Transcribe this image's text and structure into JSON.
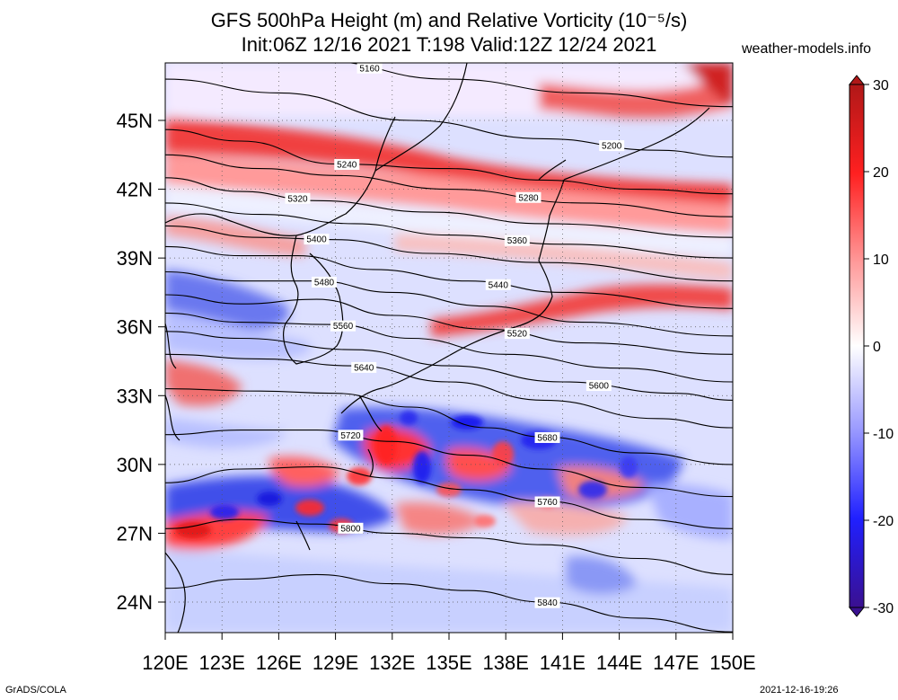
{
  "title_line1": "GFS 500hPa Height (m) and Relative Vorticity (10⁻⁵/s)",
  "title_line2": "Init:06Z 12/16 2021 T:198 Valid:12Z 12/24 2021",
  "credit": "weather-models.info",
  "footer_left": "GrADS/COLA",
  "footer_right": "2021-12-16-19:26",
  "lat_ticks": [
    "45N",
    "42N",
    "39N",
    "36N",
    "33N",
    "30N",
    "27N",
    "24N"
  ],
  "lon_ticks": [
    "120E",
    "123E",
    "126E",
    "129E",
    "132E",
    "135E",
    "138E",
    "141E",
    "144E",
    "147E",
    "150E"
  ],
  "colorbar": {
    "ticks": [
      "30",
      "20",
      "10",
      "0",
      "-10",
      "-20",
      "-30"
    ],
    "range": [
      -30,
      30
    ],
    "colors": {
      "max": "#b01818",
      "pos": "#ff2020",
      "zero": "#ffffff",
      "neg": "#2020ff",
      "min": "#3a1090"
    }
  },
  "contours": [
    {
      "label": "5160",
      "geo": [
        [
          120,
          48.2
        ],
        [
          128,
          47.6
        ],
        [
          135,
          46.8
        ],
        [
          142,
          46.2
        ],
        [
          150,
          45.6
        ]
      ]
    },
    {
      "label": "5200",
      "geo": [
        [
          120,
          46.8
        ],
        [
          126,
          46.2
        ],
        [
          133,
          45.0
        ],
        [
          140,
          44.2
        ],
        [
          146,
          43.7
        ],
        [
          150,
          43.4
        ]
      ]
    },
    {
      "label": "5240",
      "geo": [
        [
          120,
          44.6
        ],
        [
          124,
          44.1
        ],
        [
          129,
          43.1
        ],
        [
          135,
          42.9
        ],
        [
          140,
          42.4
        ],
        [
          145,
          42.0
        ],
        [
          150,
          41.8
        ]
      ]
    },
    {
      "label": "5280",
      "geo": [
        [
          120,
          43.5
        ],
        [
          125,
          42.9
        ],
        [
          129,
          42.6
        ],
        [
          135,
          42.0
        ],
        [
          142,
          41.4
        ],
        [
          150,
          40.8
        ]
      ]
    },
    {
      "label": "5320",
      "geo": [
        [
          120,
          42.5
        ],
        [
          124,
          41.9
        ],
        [
          128,
          41.5
        ],
        [
          134,
          41.0
        ],
        [
          140,
          40.5
        ],
        [
          150,
          39.9
        ]
      ]
    },
    {
      "label": "5360",
      "geo": [
        [
          120,
          41.4
        ],
        [
          125,
          40.9
        ],
        [
          130,
          40.5
        ],
        [
          135,
          40.0
        ],
        [
          141,
          39.6
        ],
        [
          150,
          39.0
        ]
      ]
    },
    {
      "label": "5400",
      "geo": [
        [
          120,
          40.4
        ],
        [
          125,
          39.9
        ],
        [
          129,
          39.8
        ],
        [
          134,
          39.2
        ],
        [
          140,
          38.8
        ],
        [
          150,
          38.0
        ]
      ]
    },
    {
      "label": "5440",
      "geo": [
        [
          120,
          39.5
        ],
        [
          124,
          39.1
        ],
        [
          127,
          39.1
        ],
        [
          131,
          38.5
        ],
        [
          136,
          38.0
        ],
        [
          141,
          37.5
        ],
        [
          150,
          36.8
        ]
      ]
    },
    {
      "label": "5480",
      "geo": [
        [
          120,
          38.4
        ],
        [
          124,
          38.0
        ],
        [
          128,
          38.0
        ],
        [
          132,
          37.5
        ],
        [
          137,
          36.9
        ],
        [
          142,
          36.2
        ],
        [
          150,
          35.6
        ]
      ]
    },
    {
      "label": "5520",
      "geo": [
        [
          120,
          37.4
        ],
        [
          124,
          37.0
        ],
        [
          128,
          37.2
        ],
        [
          132,
          36.5
        ],
        [
          137,
          35.9
        ],
        [
          142,
          35.3
        ],
        [
          150,
          34.8
        ]
      ]
    },
    {
      "label": "5560",
      "geo": [
        [
          120,
          36.6
        ],
        [
          124,
          36.2
        ],
        [
          129,
          36.1
        ],
        [
          133,
          35.5
        ],
        [
          138,
          34.8
        ],
        [
          144,
          34.2
        ],
        [
          150,
          33.6
        ]
      ]
    },
    {
      "label": "5600",
      "geo": [
        [
          120,
          35.8
        ],
        [
          124,
          35.5
        ],
        [
          130,
          35.0
        ],
        [
          135,
          34.3
        ],
        [
          141,
          33.6
        ],
        [
          147,
          33.1
        ],
        [
          150,
          32.8
        ]
      ]
    },
    {
      "label": "5640",
      "geo": [
        [
          120,
          34.8
        ],
        [
          125,
          34.6
        ],
        [
          130,
          34.3
        ],
        [
          135,
          33.6
        ],
        [
          140,
          32.8
        ],
        [
          146,
          32.0
        ],
        [
          150,
          31.6
        ]
      ]
    },
    {
      "label": "5680",
      "geo": [
        [
          120,
          33.3
        ],
        [
          125,
          33.2
        ],
        [
          129,
          33.1
        ],
        [
          133,
          32.5
        ],
        [
          137,
          31.6
        ],
        [
          140,
          31.2
        ],
        [
          145,
          30.5
        ],
        [
          150,
          30.0
        ]
      ]
    },
    {
      "label": "5720",
      "geo": [
        [
          120,
          31.3
        ],
        [
          124,
          31.5
        ],
        [
          128,
          31.5
        ],
        [
          132,
          31.0
        ],
        [
          136,
          30.4
        ],
        [
          140,
          29.8
        ],
        [
          145,
          29.0
        ],
        [
          150,
          28.6
        ]
      ]
    },
    {
      "label": "5760",
      "geo": [
        [
          120,
          29.2
        ],
        [
          124,
          29.8
        ],
        [
          128,
          29.9
        ],
        [
          132,
          29.4
        ],
        [
          136,
          28.9
        ],
        [
          140,
          28.4
        ],
        [
          145,
          27.6
        ],
        [
          150,
          27.2
        ]
      ]
    },
    {
      "label": "5800",
      "geo": [
        [
          120,
          27.2
        ],
        [
          124,
          27.6
        ],
        [
          128,
          27.4
        ],
        [
          132,
          27.0
        ],
        [
          136,
          26.8
        ],
        [
          140,
          26.5
        ],
        [
          145,
          25.9
        ],
        [
          150,
          25.2
        ]
      ]
    },
    {
      "label": "5840",
      "geo": [
        [
          120,
          24.6
        ],
        [
          124,
          25.0
        ],
        [
          128,
          25.2
        ],
        [
          132,
          24.8
        ],
        [
          136,
          24.5
        ],
        [
          140,
          24.0
        ],
        [
          145,
          23.3
        ],
        [
          150,
          22.7
        ]
      ]
    }
  ]
}
